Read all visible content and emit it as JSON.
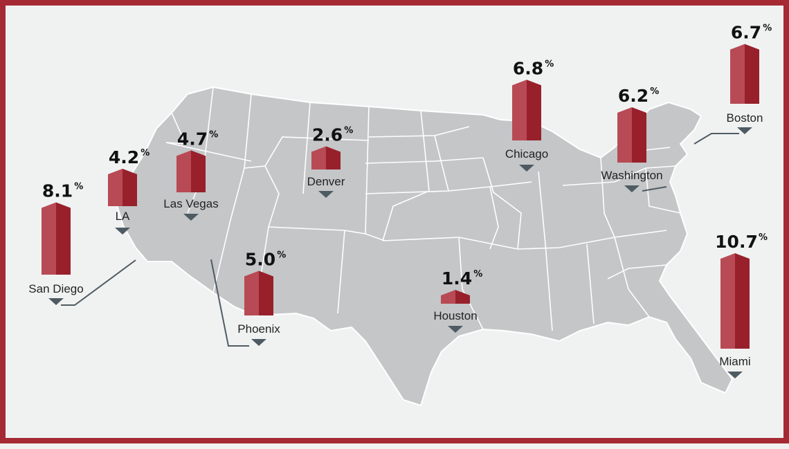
{
  "colors": {
    "frame": "#a52a33",
    "background": "#f0f2f2",
    "map_fill": "#c4c6c8",
    "map_border": "#ffffff",
    "bar_light": "#b84a55",
    "bar_dark": "#97202b",
    "bar_top": "#c96570",
    "pointer": "#4f5b63"
  },
  "chart_data": {
    "type": "bar",
    "title": "",
    "unit": "%",
    "categories": [
      "San Diego",
      "LA",
      "Las Vegas",
      "Denver",
      "Phoenix",
      "Houston",
      "Chicago",
      "Washington",
      "Boston",
      "Miami"
    ],
    "values": [
      8.1,
      4.2,
      4.7,
      2.6,
      5.0,
      1.4,
      6.8,
      6.2,
      6.7,
      10.7
    ],
    "value_labels": [
      "8.1",
      "4.2",
      "4.7",
      "2.6",
      "5.0",
      "1.4",
      "6.8",
      "6.2",
      "6.7",
      "10.7"
    ],
    "background": "map of the United States",
    "legend": "none"
  }
}
